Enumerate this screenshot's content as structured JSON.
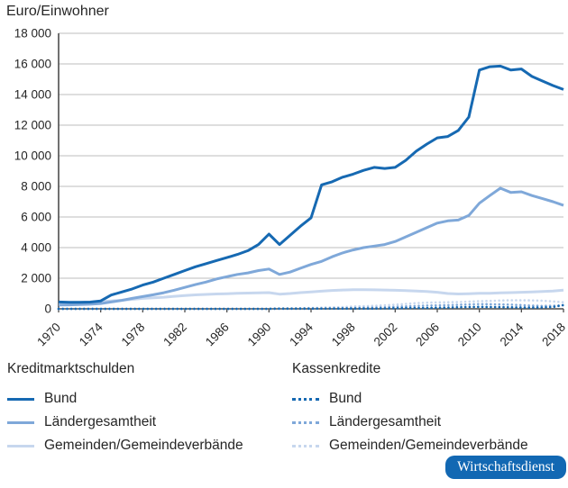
{
  "title": "Euro/Einwohner",
  "chart_data": {
    "type": "line",
    "title": "Euro/Einwohner",
    "xlabel": "",
    "ylabel": "Euro/Einwohner",
    "ylim": [
      0,
      18000
    ],
    "grid": true,
    "grid_color": "#bcbcbc",
    "axis_color": "#4d4d4d",
    "text_color": "#262626",
    "ytick_values": [
      0,
      2000,
      4000,
      6000,
      8000,
      10000,
      12000,
      14000,
      16000,
      18000
    ],
    "ytick_labels": [
      "0",
      "2 000",
      "4 000",
      "6 000",
      "8 000",
      "10 000",
      "12 000",
      "14 000",
      "16 000",
      "18 000"
    ],
    "xtick_years": [
      1970,
      1974,
      1978,
      1982,
      1986,
      1990,
      1994,
      1998,
      2002,
      2006,
      2010,
      2014,
      2018
    ],
    "years": [
      1970,
      1971,
      1972,
      1973,
      1974,
      1975,
      1976,
      1977,
      1978,
      1979,
      1980,
      1981,
      1982,
      1983,
      1984,
      1985,
      1986,
      1987,
      1988,
      1989,
      1990,
      1991,
      1992,
      1993,
      1994,
      1995,
      1996,
      1997,
      1998,
      1999,
      2000,
      2001,
      2002,
      2003,
      2004,
      2005,
      2006,
      2007,
      2008,
      2009,
      2010,
      2011,
      2012,
      2013,
      2014,
      2015,
      2016,
      2017,
      2018
    ],
    "series": [
      {
        "id": "kreditmarktschulden-gemeinden",
        "name": "Kreditmarktschulden Gemeinden/Gemeindeverbände",
        "style": "solid",
        "color": "#c7d7ee",
        "values": [
          400,
          410,
          420,
          430,
          480,
          520,
          560,
          620,
          680,
          720,
          760,
          820,
          870,
          910,
          940,
          970,
          990,
          1010,
          1030,
          1040,
          1060,
          960,
          1000,
          1060,
          1100,
          1150,
          1200,
          1230,
          1250,
          1250,
          1240,
          1230,
          1210,
          1190,
          1160,
          1130,
          1080,
          1000,
          970,
          990,
          1010,
          1020,
          1040,
          1060,
          1080,
          1100,
          1130,
          1160,
          1220
        ]
      },
      {
        "id": "kreditmarktschulden-laender",
        "name": "Kreditmarktschulden Ländergesamtheit",
        "style": "solid",
        "color": "#7fa8d9",
        "values": [
          250,
          260,
          280,
          300,
          350,
          450,
          550,
          680,
          800,
          920,
          1050,
          1220,
          1400,
          1580,
          1750,
          1950,
          2100,
          2250,
          2350,
          2500,
          2600,
          2250,
          2400,
          2650,
          2900,
          3100,
          3400,
          3650,
          3850,
          4000,
          4100,
          4200,
          4400,
          4700,
          5000,
          5300,
          5600,
          5750,
          5800,
          6100,
          6900,
          7400,
          7880,
          7600,
          7650,
          7400,
          7200,
          7000,
          6760
        ]
      },
      {
        "id": "kreditmarktschulden-bund",
        "name": "Kreditmarktschulden Bund",
        "style": "solid",
        "color": "#1669b2",
        "values": [
          450,
          430,
          430,
          440,
          520,
          900,
          1100,
          1300,
          1550,
          1750,
          2000,
          2250,
          2500,
          2750,
          2950,
          3150,
          3350,
          3550,
          3800,
          4200,
          4880,
          4200,
          4800,
          5400,
          5950,
          8100,
          8300,
          8600,
          8800,
          9050,
          9240,
          9170,
          9240,
          9700,
          10300,
          10760,
          11170,
          11260,
          11650,
          12530,
          15600,
          15820,
          15860,
          15600,
          15670,
          15180,
          14880,
          14590,
          14330
        ]
      },
      {
        "id": "kassenkredite-gemeinden",
        "name": "Kassenkredite Gemeinden/Gemeindeverbände",
        "style": "dotted",
        "color": "#c7d7ee",
        "values": [
          0,
          0,
          0,
          0,
          0,
          0,
          0,
          0,
          0,
          0,
          0,
          0,
          0,
          0,
          0,
          0,
          0,
          0,
          0,
          0,
          0,
          10,
          20,
          40,
          60,
          80,
          100,
          120,
          150,
          170,
          200,
          230,
          270,
          320,
          370,
          400,
          420,
          430,
          440,
          470,
          500,
          520,
          540,
          560,
          560,
          550,
          530,
          480,
          430
        ]
      },
      {
        "id": "kassenkredite-laender",
        "name": "Kassenkredite Ländergesamtheit",
        "style": "dotted",
        "color": "#7fa8d9",
        "values": [
          0,
          0,
          0,
          0,
          0,
          0,
          0,
          0,
          0,
          0,
          0,
          0,
          0,
          0,
          0,
          0,
          0,
          0,
          0,
          0,
          0,
          0,
          0,
          0,
          0,
          20,
          30,
          40,
          60,
          70,
          80,
          100,
          130,
          160,
          190,
          210,
          230,
          240,
          260,
          290,
          310,
          300,
          290,
          270,
          240,
          210,
          190,
          200,
          230
        ]
      },
      {
        "id": "kassenkredite-bund",
        "name": "Kassenkredite Bund",
        "style": "dotted",
        "color": "#1669b2",
        "values": [
          0,
          0,
          0,
          0,
          0,
          0,
          0,
          0,
          0,
          0,
          0,
          0,
          0,
          0,
          0,
          0,
          0,
          0,
          0,
          0,
          0,
          20,
          20,
          20,
          20,
          20,
          20,
          20,
          20,
          20,
          20,
          30,
          40,
          50,
          60,
          60,
          70,
          80,
          100,
          120,
          130,
          120,
          110,
          100,
          90,
          80,
          90,
          120,
          250
        ]
      }
    ]
  },
  "legend": {
    "groups": [
      {
        "title": "Kreditmarktschulden",
        "items": [
          {
            "label": "Bund",
            "style": "solid",
            "color": "#1669b2"
          },
          {
            "label": "Ländergesamtheit",
            "style": "solid",
            "color": "#7fa8d9"
          },
          {
            "label": "Gemeinden/Gemeindeverbände",
            "style": "solid",
            "color": "#c7d7ee"
          }
        ]
      },
      {
        "title": "Kassenkredite",
        "items": [
          {
            "label": "Bund",
            "style": "dotted",
            "color": "#1669b2"
          },
          {
            "label": "Ländergesamtheit",
            "style": "dotted",
            "color": "#7fa8d9"
          },
          {
            "label": "Gemeinden/Gemeindeverbände",
            "style": "dotted",
            "color": "#c7d7ee"
          }
        ]
      }
    ]
  },
  "badge": {
    "label": "Wirtschaftsdienst",
    "bg": "#1268b3",
    "text_color": "#ffffff"
  }
}
